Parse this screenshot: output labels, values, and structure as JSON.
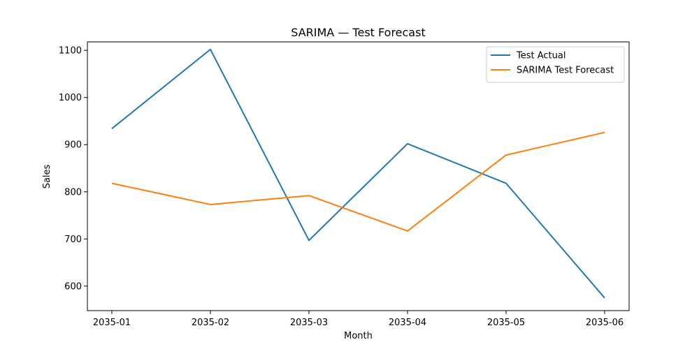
{
  "chart_data": {
    "type": "line",
    "title": "SARIMA — Test Forecast",
    "xlabel": "Month",
    "ylabel": "Sales",
    "categories": [
      "2035-01",
      "2035-02",
      "2035-03",
      "2035-04",
      "2035-05",
      "2035-06"
    ],
    "ylim": [
      548,
      1118
    ],
    "yticks": [
      600,
      700,
      800,
      900,
      1000,
      1100
    ],
    "grid": false,
    "legend_position": "top-right",
    "series": [
      {
        "name": "Test Actual",
        "color": "#1f77b4",
        "values": [
          934,
          1102,
          697,
          902,
          818,
          575
        ]
      },
      {
        "name": "SARIMA Test Forecast",
        "color": "#ff7f0e",
        "values": [
          818,
          773,
          792,
          717,
          878,
          926
        ]
      }
    ]
  }
}
